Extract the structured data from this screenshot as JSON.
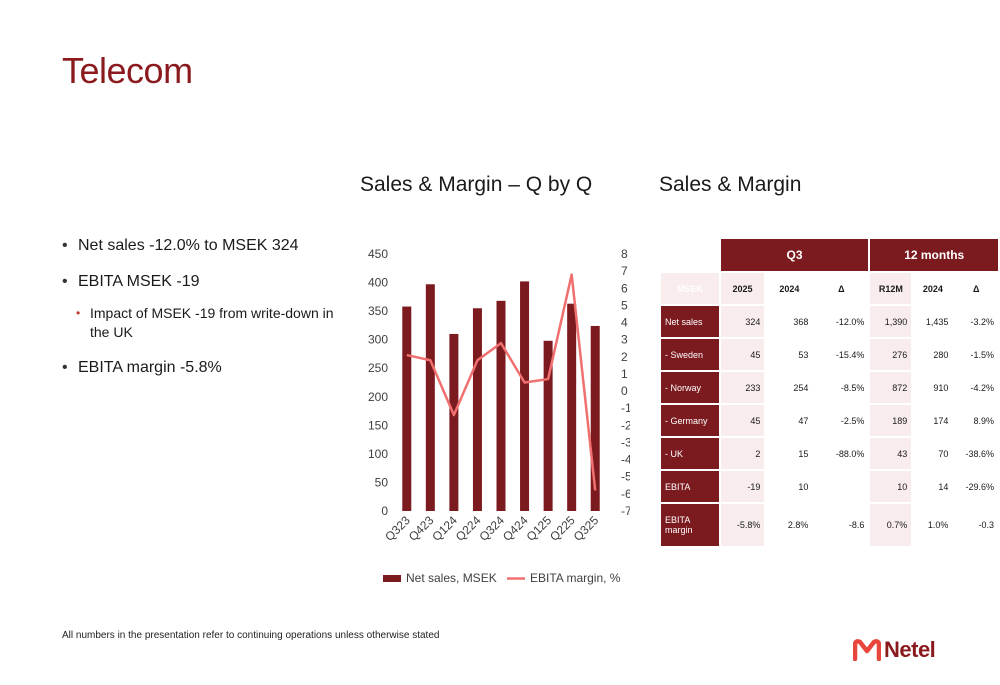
{
  "page": {
    "title": "Telecom",
    "chart_title": "Sales & Margin – Q by Q",
    "table_title": "Sales & Margin",
    "footnote": "All numbers in the presentation refer to continuing operations unless otherwise stated",
    "logo_text": "Netel"
  },
  "bullets": [
    "Net sales -12.0% to MSEK 324",
    "EBITA MSEK -19",
    "Impact of MSEK -19 from write-down in the UK",
    "EBITA margin -5.8%"
  ],
  "colors": {
    "accent": "#7b1a1f",
    "bar": "#7b1a1f",
    "line": "#f07070",
    "light": "#f8ecec"
  },
  "chart_data": {
    "type": "bar",
    "categories": [
      "Q323",
      "Q423",
      "Q124",
      "Q224",
      "Q324",
      "Q424",
      "Q125",
      "Q225",
      "Q325"
    ],
    "series": [
      {
        "name": "Net sales, MSEK",
        "type": "bar",
        "axis": "left",
        "values": [
          358,
          397,
          310,
          355,
          368,
          402,
          298,
          363,
          324
        ]
      },
      {
        "name": "EBITA margin, %",
        "type": "line",
        "axis": "right",
        "values": [
          2.1,
          1.8,
          -1.4,
          1.8,
          2.8,
          0.5,
          0.7,
          6.8,
          -5.8
        ]
      }
    ],
    "y_left": {
      "min": 0,
      "max": 450,
      "ticks": [
        "0",
        "50",
        "100",
        "150",
        "200",
        "250",
        "300",
        "350",
        "400",
        "450"
      ]
    },
    "y_right": {
      "min": -7,
      "max": 8,
      "ticks": [
        "-7",
        "-6",
        "-5",
        "-4",
        "-3",
        "-2",
        "-1",
        "0",
        "1",
        "2",
        "3",
        "4",
        "5",
        "6",
        "7",
        "8"
      ]
    },
    "legend_position": "bottom",
    "grid": true
  },
  "table": {
    "group_q3": "Q3",
    "group_12m": "12 months",
    "headers": [
      "MSEK",
      "2025",
      "2024",
      "Δ",
      "R12M",
      "2024",
      "Δ"
    ],
    "rows": [
      {
        "label": "Net sales",
        "c": [
          "324",
          "368",
          "-12.0%",
          "1,390",
          "1,435",
          "-3.2%"
        ]
      },
      {
        "label": "- Sweden",
        "c": [
          "45",
          "53",
          "-15.4%",
          "276",
          "280",
          "-1.5%"
        ]
      },
      {
        "label": "- Norway",
        "c": [
          "233",
          "254",
          "-8.5%",
          "872",
          "910",
          "-4.2%"
        ]
      },
      {
        "label": "- Germany",
        "c": [
          "45",
          "47",
          "-2.5%",
          "189",
          "174",
          "8.9%"
        ]
      },
      {
        "label": "- UK",
        "c": [
          "2",
          "15",
          "-88.0%",
          "43",
          "70",
          "-38.6%"
        ]
      },
      {
        "label": "EBITA",
        "c": [
          "-19",
          "10",
          "",
          "10",
          "14",
          "-29.6%"
        ]
      },
      {
        "label": "EBITA margin",
        "c": [
          "-5.8%",
          "2.8%",
          "-8.6",
          "0.7%",
          "1.0%",
          "-0.3"
        ]
      }
    ]
  }
}
